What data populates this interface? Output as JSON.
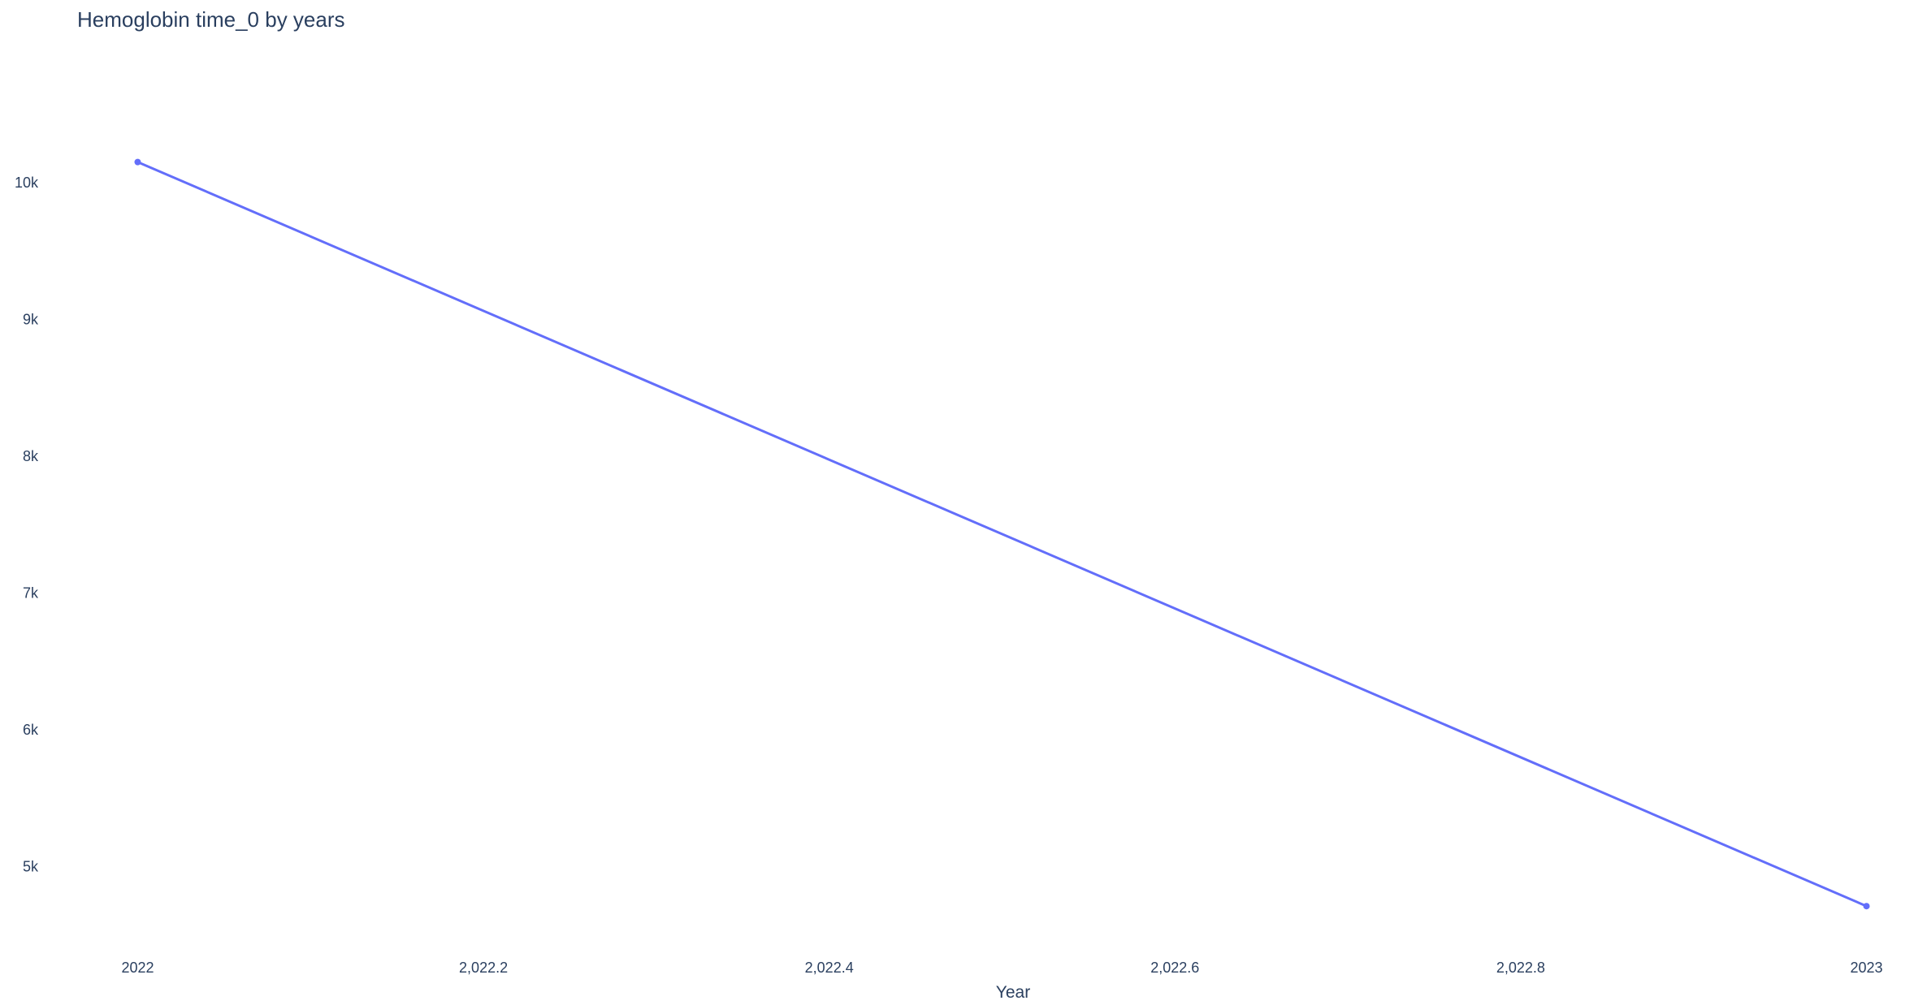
{
  "chart_data": {
    "type": "line",
    "title": "Hemoglobin time_0 by years",
    "xlabel": "Year",
    "ylabel": "",
    "x": [
      2022,
      2023
    ],
    "series": [
      {
        "values": [
          10150,
          4710
        ],
        "color": "#636efa",
        "mode": "lines+markers"
      }
    ],
    "xlim": [
      2021.965,
      2023.035
    ],
    "ylim": [
      4450,
      10860
    ],
    "x_ticks": [
      {
        "value": 2022,
        "label": "2022"
      },
      {
        "value": 2022.2,
        "label": "2,022.2"
      },
      {
        "value": 2022.4,
        "label": "2,022.4"
      },
      {
        "value": 2022.6,
        "label": "2,022.6"
      },
      {
        "value": 2022.8,
        "label": "2,022.8"
      },
      {
        "value": 2023,
        "label": "2023"
      }
    ],
    "y_ticks": [
      {
        "value": 5000,
        "label": "5k"
      },
      {
        "value": 6000,
        "label": "6k"
      },
      {
        "value": 7000,
        "label": "7k"
      },
      {
        "value": 8000,
        "label": "8k"
      },
      {
        "value": 9000,
        "label": "9k"
      },
      {
        "value": 10000,
        "label": "10k"
      }
    ],
    "grid": false,
    "legend": "none"
  }
}
